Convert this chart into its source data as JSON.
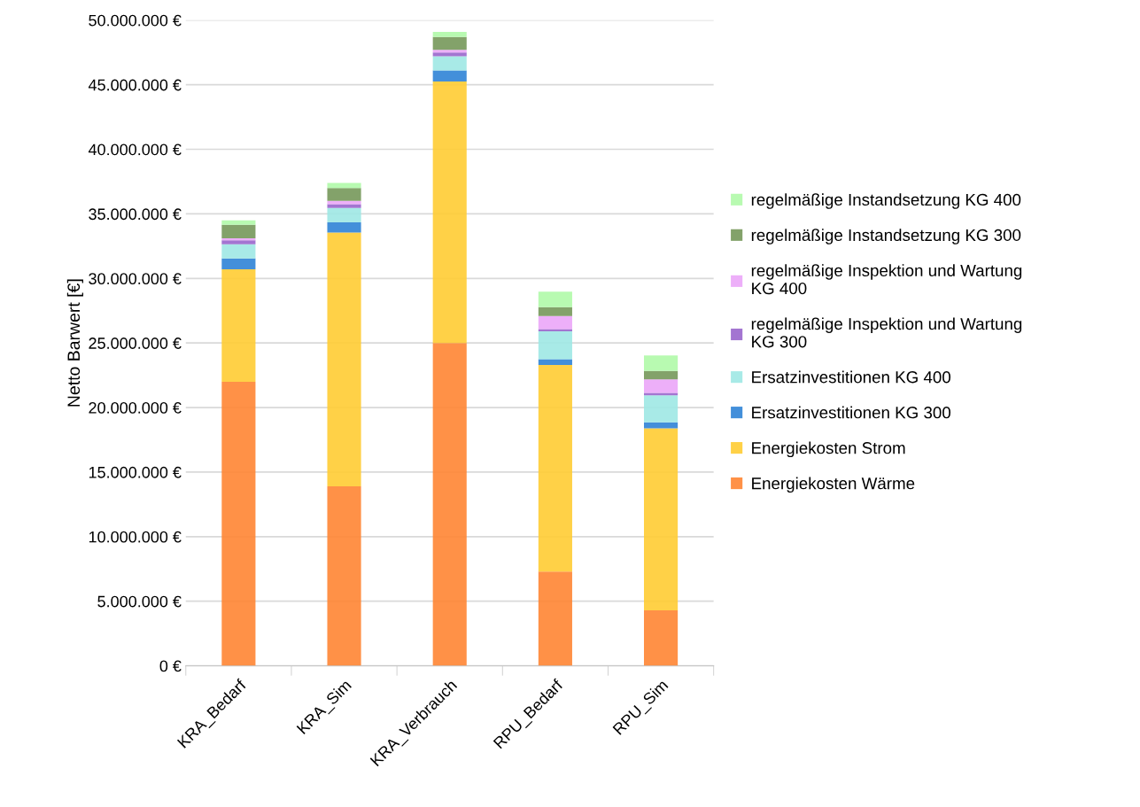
{
  "chart_data": {
    "type": "bar",
    "stacked": true,
    "ylabel": "Netto Barwert [€]",
    "categories": [
      "KRA_Bedarf",
      "KRA_Sim",
      "KRA_Verbrauch",
      "RPU_Bedarf",
      "RPU_Sim"
    ],
    "series": [
      {
        "name": "Energiekosten Wärme",
        "color": "#ff8533",
        "values": [
          22000000,
          13900000,
          25000000,
          7300000,
          4300000
        ]
      },
      {
        "name": "Energiekosten Strom",
        "color": "#ffcc33",
        "values": [
          8700000,
          19650000,
          20250000,
          16000000,
          14100000
        ]
      },
      {
        "name": "Ersatzinvestitionen KG 300",
        "color": "#2f83d6",
        "values": [
          850000,
          800000,
          850000,
          450000,
          450000
        ]
      },
      {
        "name": "Ersatzinvestitionen KG 400",
        "color": "#9ee8e4",
        "values": [
          1100000,
          1100000,
          1100000,
          2150000,
          2100000
        ]
      },
      {
        "name": "regelmäßige Inspektion und Wartung KG 300",
        "color": "#9966cc",
        "values": [
          300000,
          300000,
          300000,
          180000,
          180000
        ]
      },
      {
        "name": "regelmäßige Inspektion und Wartung KG 400",
        "color": "#eba6f8",
        "values": [
          150000,
          250000,
          200000,
          1000000,
          1050000
        ]
      },
      {
        "name": "regelmäßige Instandsetzung KG 300",
        "color": "#76985a",
        "values": [
          1050000,
          1000000,
          1000000,
          700000,
          650000
        ]
      },
      {
        "name": "regelmäßige Instandsetzung KG 400",
        "color": "#b0f9a8",
        "values": [
          350000,
          400000,
          400000,
          1200000,
          1200000
        ]
      }
    ],
    "ylim": [
      0,
      50000000
    ],
    "yticks": [
      {
        "value": 0,
        "label": "0 €"
      },
      {
        "value": 5000000,
        "label": "5.000.000 €"
      },
      {
        "value": 10000000,
        "label": "10.000.000 €"
      },
      {
        "value": 15000000,
        "label": "15.000.000 €"
      },
      {
        "value": 20000000,
        "label": "20.000.000 €"
      },
      {
        "value": 25000000,
        "label": "25.000.000 €"
      },
      {
        "value": 30000000,
        "label": "30.000.000 €"
      },
      {
        "value": 35000000,
        "label": "35.000.000 €"
      },
      {
        "value": 40000000,
        "label": "40.000.000 €"
      },
      {
        "value": 45000000,
        "label": "45.000.000 €"
      },
      {
        "value": 50000000,
        "label": "50.000.000 €"
      }
    ],
    "grid": "y",
    "legend": "right"
  }
}
